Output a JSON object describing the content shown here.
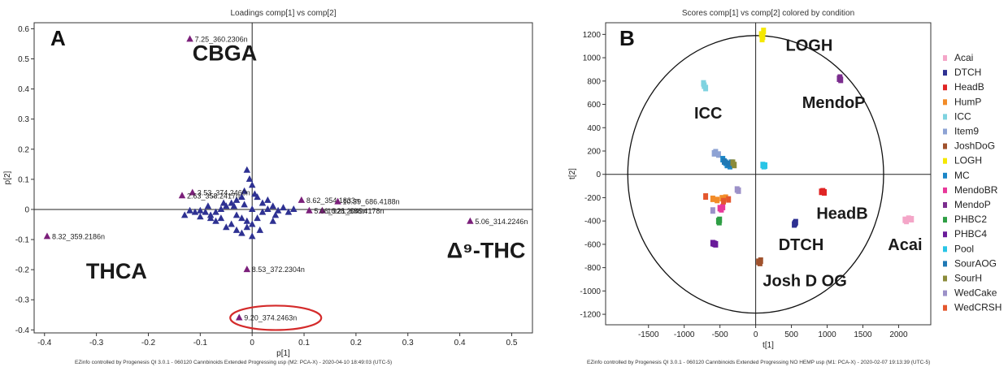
{
  "chart_data": [
    {
      "type": "scatter",
      "panel_label": "A",
      "title": "Loadings comp[1] vs comp[2]",
      "xlabel": "p[1]",
      "ylabel": "p[2]",
      "xlim": [
        -0.42,
        0.54
      ],
      "ylim": [
        -0.41,
        0.62
      ],
      "xticks": [
        -0.4,
        -0.3,
        -0.2,
        -0.1,
        0,
        0.1,
        0.2,
        0.3,
        0.4,
        0.5
      ],
      "xtick_labels": [
        "-0.4",
        "-0.3",
        "-0.2",
        "-0.1",
        "0",
        "0.1",
        "0.2",
        "0.3",
        "0.4",
        "0.5"
      ],
      "yticks": [
        0.6,
        0.5,
        0.4,
        0.3,
        0.2,
        0.1,
        0,
        -0.1,
        -0.2,
        -0.3,
        -0.4
      ],
      "ytick_labels": [
        "0.6",
        "0.5",
        "0.4",
        "0.3",
        "0.2",
        "0.1",
        "0",
        "-0.1",
        "-0.2",
        "-0.3",
        "-0.4"
      ],
      "marker_color": "#2e3192",
      "highlight_color": "#7b1f7a",
      "labeled_points": [
        {
          "label": "7.25_360.2306n",
          "x": -0.12,
          "y": 0.565
        },
        {
          "label": "3.53_374.2460n",
          "x": -0.115,
          "y": 0.055
        },
        {
          "label": "2.63_358.2417n",
          "x": -0.135,
          "y": 0.045
        },
        {
          "label": "8.62_354.1833n",
          "x": 0.095,
          "y": 0.03
        },
        {
          "label": "10.39_686.4188n",
          "x": 0.165,
          "y": 0.025
        },
        {
          "label": "10.21_686.4178n",
          "x": 0.135,
          "y": -0.005
        },
        {
          "label": "5.06_928.2049n",
          "x": 0.11,
          "y": -0.005
        },
        {
          "label": "8.32_359.2186n",
          "x": -0.395,
          "y": -0.09
        },
        {
          "label": "5.06_314.2246n",
          "x": 0.42,
          "y": -0.04
        },
        {
          "label": "8.53_372.2304n",
          "x": -0.01,
          "y": -0.2
        },
        {
          "label": "9.20_374.2463n",
          "x": -0.025,
          "y": -0.36
        }
      ],
      "cluster_points": [
        [
          -0.01,
          0.13
        ],
        [
          -0.005,
          0.1
        ],
        [
          0.0,
          0.08
        ],
        [
          -0.015,
          0.06
        ],
        [
          -0.02,
          0.04
        ],
        [
          0.005,
          0.05
        ],
        [
          -0.03,
          0.03
        ],
        [
          -0.04,
          0.02
        ],
        [
          -0.05,
          0.01
        ],
        [
          -0.06,
          0.0
        ],
        [
          -0.07,
          -0.01
        ],
        [
          -0.08,
          -0.02
        ],
        [
          -0.09,
          -0.01
        ],
        [
          -0.1,
          -0.005
        ],
        [
          -0.11,
          -0.01
        ],
        [
          -0.12,
          -0.005
        ],
        [
          -0.13,
          -0.02
        ],
        [
          -0.03,
          -0.02
        ],
        [
          -0.02,
          -0.03
        ],
        [
          -0.01,
          -0.04
        ],
        [
          0.0,
          -0.05
        ],
        [
          -0.04,
          -0.05
        ],
        [
          -0.05,
          -0.06
        ],
        [
          -0.03,
          -0.07
        ],
        [
          -0.02,
          -0.08
        ],
        [
          0.0,
          -0.09
        ],
        [
          -0.01,
          -0.06
        ],
        [
          0.01,
          -0.03
        ],
        [
          0.02,
          -0.01
        ],
        [
          0.03,
          0.0
        ],
        [
          0.04,
          0.01
        ],
        [
          0.05,
          -0.005
        ],
        [
          0.06,
          0.005
        ],
        [
          0.07,
          -0.01
        ],
        [
          0.08,
          0.0
        ],
        [
          0.02,
          0.02
        ],
        [
          0.01,
          0.04
        ],
        [
          -0.06,
          -0.03
        ],
        [
          -0.07,
          -0.04
        ],
        [
          -0.08,
          -0.03
        ],
        [
          -0.1,
          -0.025
        ],
        [
          0.015,
          -0.07
        ],
        [
          0.04,
          -0.04
        ],
        [
          -0.035,
          0.01
        ],
        [
          0.0,
          0.0
        ],
        [
          -0.015,
          0.015
        ],
        [
          0.03,
          0.03
        ],
        [
          -0.055,
          0.02
        ],
        [
          -0.085,
          0.01
        ],
        [
          0.045,
          -0.02
        ]
      ],
      "annotations": [
        {
          "text": "CBGA",
          "x": -0.115,
          "y": 0.495
        },
        {
          "text": "THCA",
          "x": -0.32,
          "y": -0.23
        },
        {
          "text": "Δ⁹-THC",
          "x": 0.375,
          "y": -0.16
        }
      ],
      "footer": "EZinfo controlled by Progenesis QI 3.0.1 - 060120  Cannbinoids  Extended  Progressing  usp (M2: PCA-X) - 2020-04-10 18:49:03 (UTC-5)"
    },
    {
      "type": "scatter",
      "panel_label": "B",
      "title": "Scores comp[1] vs comp[2] colored by condition",
      "xlabel": "t[1]",
      "ylabel": "t[2]",
      "xlim": [
        -2100,
        2450
      ],
      "ylim": [
        -1290,
        1300
      ],
      "xticks": [
        -1500,
        -1000,
        -500,
        0,
        500,
        1000,
        1500,
        2000
      ],
      "xtick_labels": [
        "-1500",
        "-1000",
        "-500",
        "0",
        "500",
        "1000",
        "1500",
        "2000"
      ],
      "yticks": [
        1200,
        1000,
        800,
        600,
        400,
        200,
        0,
        -200,
        -400,
        -600,
        -800,
        -1000,
        -1200
      ],
      "ytick_labels": [
        "1200",
        "1000",
        "800",
        "600",
        "400",
        "200",
        "0",
        "-200",
        "-400",
        "-600",
        "-800",
        "-1000",
        "-1200"
      ],
      "ellipse": {
        "rx": 1790,
        "ry": 1190
      },
      "legend_position": "right",
      "series": [
        {
          "name": "Acai",
          "color": "#f4a6c8",
          "points": [
            [
              2090,
              -390
            ],
            [
              2140,
              -380
            ],
            [
              2180,
              -385
            ],
            [
              2110,
              -400
            ]
          ]
        },
        {
          "name": "DTCH",
          "color": "#2e3192",
          "points": [
            [
              540,
              -430
            ],
            [
              560,
              -410
            ],
            [
              550,
              -420
            ]
          ]
        },
        {
          "name": "HeadB",
          "color": "#e02424",
          "points": [
            [
              920,
              -150
            ],
            [
              960,
              -155
            ],
            [
              940,
              -145
            ]
          ]
        },
        {
          "name": "HumP",
          "color": "#f28c28",
          "points": [
            [
              -600,
              -210
            ],
            [
              -540,
              -220
            ],
            [
              -470,
              -205
            ],
            [
              -420,
              -200
            ]
          ]
        },
        {
          "name": "ICC",
          "color": "#7fd3e0",
          "points": [
            [
              -730,
              780
            ],
            [
              -700,
              740
            ],
            [
              -720,
              760
            ]
          ]
        },
        {
          "name": "Item9",
          "color": "#8ea3d4",
          "points": [
            [
              -560,
              190
            ],
            [
              -520,
              170
            ],
            [
              -580,
              180
            ]
          ]
        },
        {
          "name": "JoshDoG",
          "color": "#a0522d",
          "points": [
            [
              40,
              -750
            ],
            [
              70,
              -740
            ],
            [
              60,
              -760
            ]
          ]
        },
        {
          "name": "LOGH",
          "color": "#f5e800",
          "points": [
            [
              80,
              1200
            ],
            [
              100,
              1180
            ],
            [
              110,
              1230
            ],
            [
              90,
              1160
            ]
          ]
        },
        {
          "name": "MC",
          "color": "#1a86c7",
          "points": [
            [
              -460,
              130
            ],
            [
              -420,
              100
            ],
            [
              -400,
              80
            ],
            [
              -360,
              70
            ]
          ]
        },
        {
          "name": "MendoBR",
          "color": "#e8389a",
          "points": [
            [
              -500,
              -290
            ],
            [
              -460,
              -280
            ],
            [
              -480,
              -300
            ]
          ]
        },
        {
          "name": "MendoP",
          "color": "#7b2d8e",
          "points": [
            [
              1170,
              820
            ],
            [
              1190,
              810
            ],
            [
              1180,
              830
            ]
          ]
        },
        {
          "name": "PHBC2",
          "color": "#2e9e44",
          "points": [
            [
              -520,
              -400
            ],
            [
              -510,
              -410
            ],
            [
              -505,
              -390
            ]
          ]
        },
        {
          "name": "PHBC4",
          "color": "#6a1b9a",
          "points": [
            [
              -600,
              -590
            ],
            [
              -560,
              -600
            ],
            [
              -580,
              -595
            ]
          ]
        },
        {
          "name": "Pool",
          "color": "#29c5e6",
          "points": [
            [
              100,
              80
            ],
            [
              130,
              75
            ],
            [
              115,
              70
            ]
          ]
        },
        {
          "name": "SourAOG",
          "color": "#1f78b4",
          "points": [
            [
              -440,
              110
            ],
            [
              -380,
              90
            ],
            [
              -340,
              100
            ]
          ]
        },
        {
          "name": "SourH",
          "color": "#8b8b3a",
          "points": [
            [
              -320,
              100
            ],
            [
              -300,
              80
            ]
          ]
        },
        {
          "name": "WedCake",
          "color": "#9c91c8",
          "points": [
            [
              -260,
              -130
            ],
            [
              -240,
              -140
            ],
            [
              -600,
              -310
            ]
          ]
        },
        {
          "name": "WedCRSH",
          "color": "#e4572e",
          "points": [
            [
              -700,
              -190
            ],
            [
              -450,
              -230
            ],
            [
              -380,
              -215
            ]
          ]
        }
      ],
      "annotations": [
        {
          "text": "LOGH",
          "x": 420,
          "y": 1060
        },
        {
          "text": "MendoP",
          "x": 650,
          "y": 570
        },
        {
          "text": "ICC",
          "x": -860,
          "y": 480
        },
        {
          "text": "HeadB",
          "x": 850,
          "y": -380
        },
        {
          "text": "DTCH",
          "x": 320,
          "y": -650
        },
        {
          "text": "Acai",
          "x": 1850,
          "y": -650
        },
        {
          "text": "Josh D OG",
          "x": 100,
          "y": -960
        }
      ],
      "footer": "EZinfo controlled by Progenesis QI 3.0.1 - 060120  Cannbinoids  Extended  Progressing  NO  HEMP usp (M1: PCA-X) - 2020-02-07 19:13:39 (UTC-5)"
    }
  ]
}
